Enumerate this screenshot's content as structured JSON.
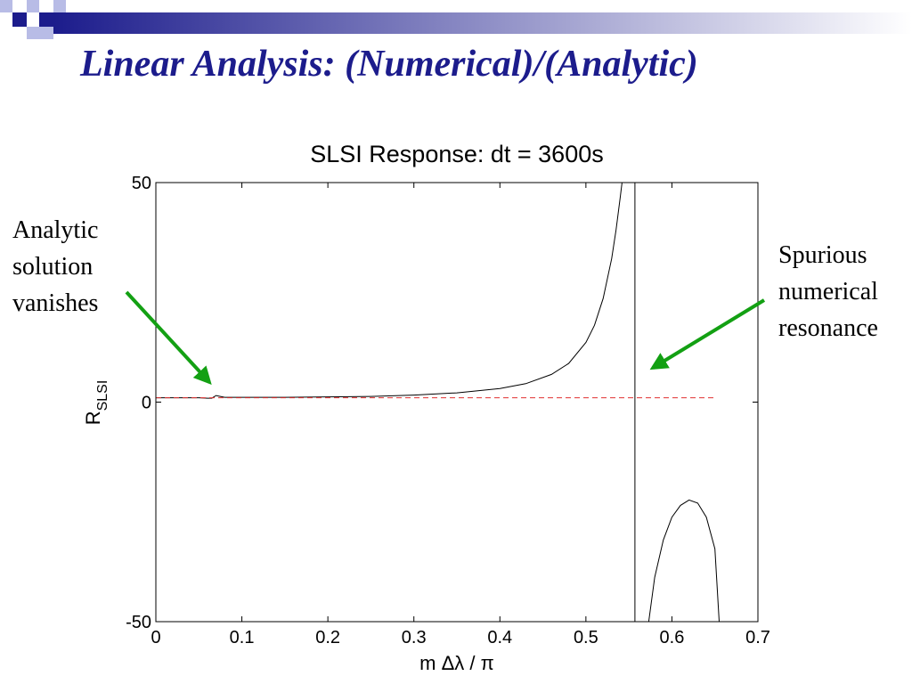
{
  "slide": {
    "title": "Linear Analysis: (Numerical)/(Analytic)",
    "callout_left": "Analytic\nsolution\nvanishes",
    "callout_right": "Spurious\nnumerical\nresonance",
    "accent_color": "#1c1c8c",
    "arrow_color": "#13a013"
  },
  "chart_data": {
    "type": "line",
    "title": "SLSI Response: dt = 3600s",
    "xlabel": "m Δλ / π",
    "ylabel": "R",
    "ylabel_subscript": "SLSI",
    "xlim": [
      0,
      0.7
    ],
    "ylim": [
      -50,
      50
    ],
    "xticks": [
      0,
      0.1,
      0.2,
      0.3,
      0.4,
      0.5,
      0.6,
      0.7
    ],
    "xtick_labels": [
      "0",
      "0.1",
      "0.2",
      "0.3",
      "0.4",
      "0.5",
      "0.6",
      "0.7"
    ],
    "yticks": [
      -50,
      0,
      50
    ],
    "ytick_labels": [
      "-50",
      "0",
      "50"
    ],
    "grid": false,
    "series": [
      {
        "style": "solid",
        "color": "#000000",
        "x": [
          0,
          0.05,
          0.06,
          0.065,
          0.07,
          0.075,
          0.08,
          0.1,
          0.15,
          0.2,
          0.25,
          0.3,
          0.35,
          0.4,
          0.43,
          0.46,
          0.48,
          0.5,
          0.51,
          0.52,
          0.53,
          0.535,
          0.54,
          0.5425,
          0.545
        ],
        "y": [
          1,
          1,
          0.9,
          0.9,
          1.5,
          1.3,
          1.1,
          1.1,
          1.1,
          1.2,
          1.3,
          1.6,
          2.1,
          3.1,
          4.2,
          6.3,
          8.8,
          13.6,
          17.5,
          23.6,
          32.7,
          39.2,
          46.8,
          50.8,
          55
        ]
      },
      {
        "style": "solid",
        "color": "#000000",
        "x": [
          0.557,
          0.557
        ],
        "y": [
          50,
          -50
        ]
      },
      {
        "style": "solid",
        "color": "#000000",
        "x": [
          0.573,
          0.58,
          0.59,
          0.6,
          0.61,
          0.62,
          0.63,
          0.64,
          0.65,
          0.655
        ],
        "y": [
          -50,
          -39.9,
          -31.4,
          -26.2,
          -23.5,
          -22.3,
          -23,
          -26.2,
          -33.4,
          -50
        ]
      },
      {
        "style": "dashed",
        "color": "#e03030",
        "x": [
          0,
          0.65
        ],
        "y": [
          1,
          1
        ]
      }
    ]
  }
}
